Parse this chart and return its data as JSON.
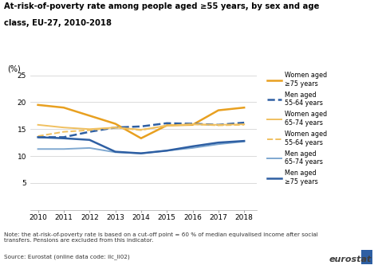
{
  "title_line1": "At-risk-of-poverty rate among people aged ≥55 years, by sex and age",
  "title_line2": "class, EU-27, 2010-2018",
  "ylabel": "(%)",
  "years": [
    2010,
    2011,
    2012,
    2013,
    2014,
    2015,
    2016,
    2017,
    2018
  ],
  "series": {
    "women_75plus": {
      "label": "Women aged\n≥75 years",
      "color": "#e8a020",
      "linestyle": "solid",
      "linewidth": 1.8,
      "values": [
        19.5,
        19.0,
        17.5,
        16.0,
        13.3,
        15.7,
        15.8,
        18.5,
        19.0
      ]
    },
    "men_55_64": {
      "label": "Men aged\n55-64 years",
      "color": "#2e5fa3",
      "linestyle": "dashed",
      "linewidth": 1.8,
      "values": [
        13.5,
        13.5,
        14.5,
        15.3,
        15.5,
        16.1,
        16.0,
        15.8,
        16.2
      ]
    },
    "women_65_74": {
      "label": "Women aged\n65-74 years",
      "color": "#f0c060",
      "linestyle": "solid",
      "linewidth": 1.4,
      "values": [
        15.8,
        15.3,
        15.0,
        15.3,
        14.9,
        15.6,
        15.9,
        15.8,
        15.9
      ]
    },
    "women_55_64": {
      "label": "Women aged\n55-64 years",
      "color": "#f0c060",
      "linestyle": "dashed",
      "linewidth": 1.4,
      "values": [
        13.7,
        14.5,
        14.8,
        15.3,
        14.8,
        15.7,
        15.9,
        15.7,
        15.8
      ]
    },
    "men_65_74": {
      "label": "Men aged\n65-74 years",
      "color": "#7fa8d0",
      "linestyle": "solid",
      "linewidth": 1.4,
      "values": [
        11.3,
        11.3,
        11.5,
        10.7,
        10.5,
        11.0,
        11.5,
        12.2,
        12.7
      ]
    },
    "men_75plus": {
      "label": "Men aged\n≥75 years",
      "color": "#2e5fa3",
      "linestyle": "solid",
      "linewidth": 1.8,
      "values": [
        13.5,
        13.3,
        13.0,
        10.8,
        10.5,
        11.0,
        11.8,
        12.5,
        12.8
      ]
    }
  },
  "ylim": [
    0,
    25
  ],
  "yticks": [
    0,
    5,
    10,
    15,
    20,
    25
  ],
  "note": "Note: the at-risk-of-poverty rate is based on a cut-off point = 60 % of median equivalised income after social\ntransfers. Pensions are excluded from this indicator.",
  "source": "Source: Eurostat (online data code: ilc_li02)",
  "background_color": "#ffffff",
  "grid_color": "#cccccc"
}
